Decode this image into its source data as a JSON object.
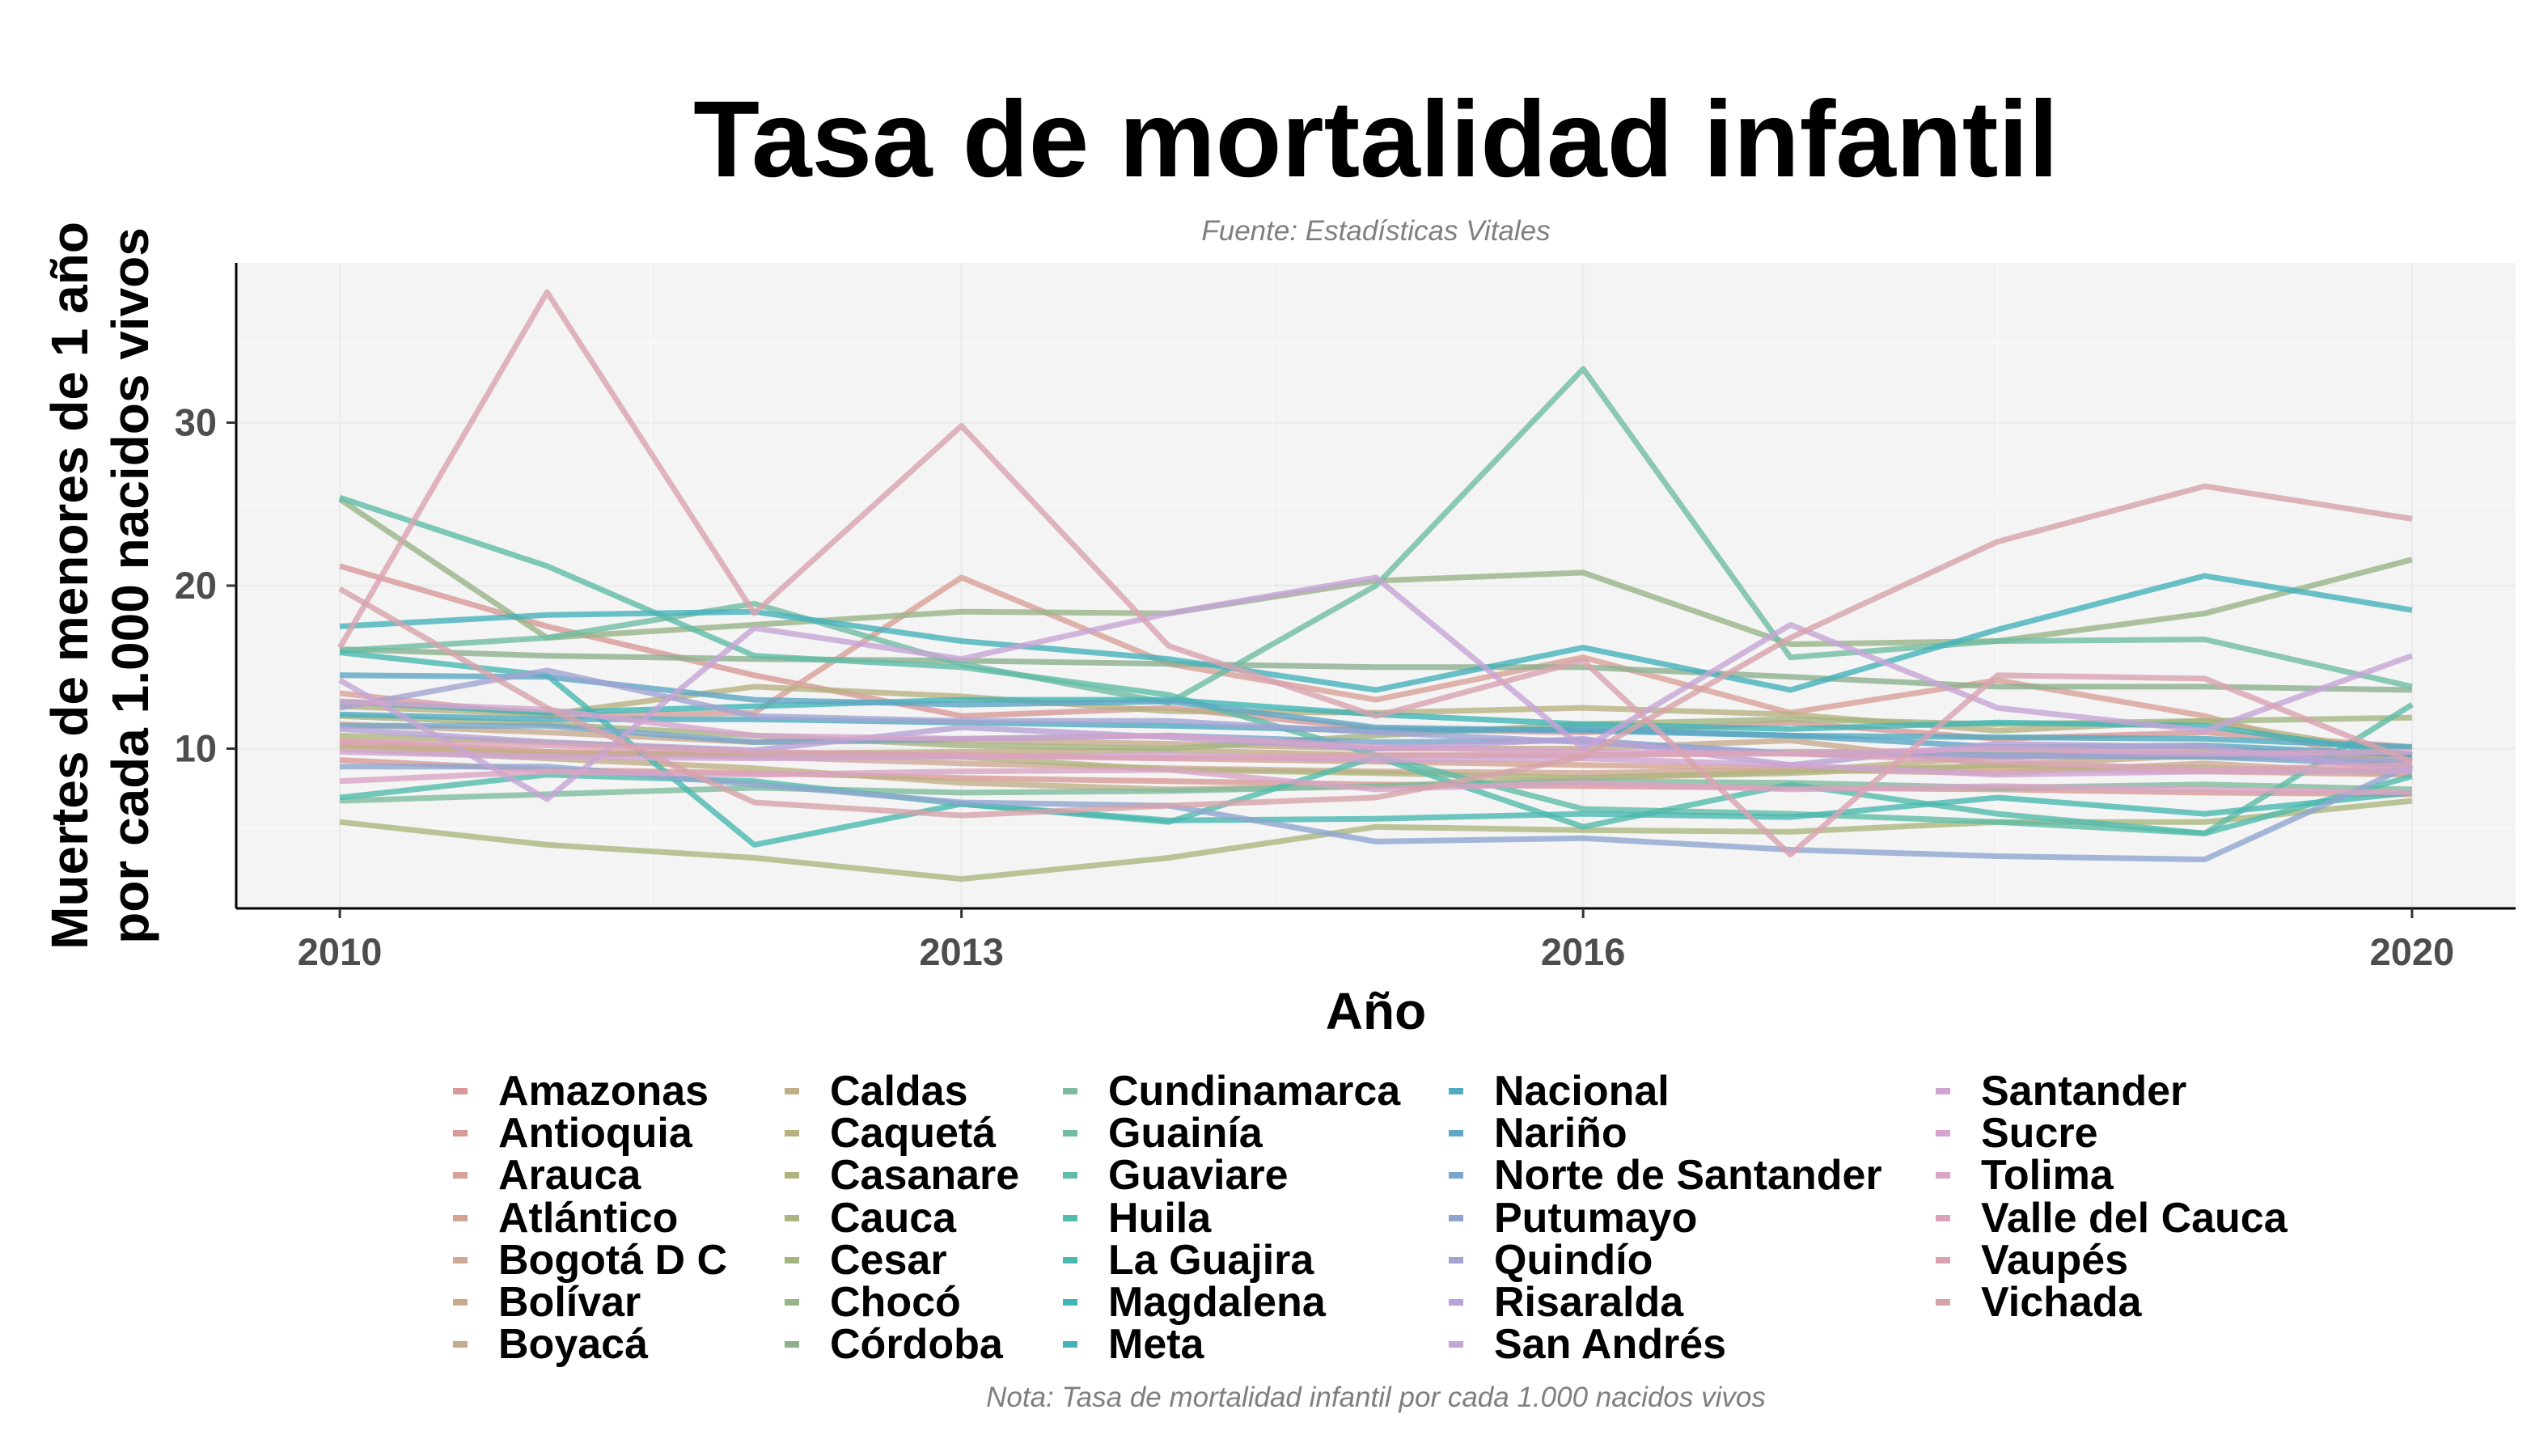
{
  "chart_data": {
    "type": "line",
    "title": "Tasa de mortalidad infantil",
    "subtitle": "Fuente: Estadísticas Vitales",
    "caption": "Nota: Tasa de mortalidad infantil por cada 1.000 nacidos vivos",
    "xlabel": "Año",
    "ylabel": [
      "Muertes de menores de 1 año",
      "por cada 1.000 nacidos vivos"
    ],
    "xlim": [
      2009.5,
      2020.5
    ],
    "ylim": [
      0.2,
      39.8
    ],
    "x_ticks": [
      2010,
      2013,
      2016,
      2020
    ],
    "y_ticks": [
      10,
      20,
      30
    ],
    "grid": true,
    "legend_position": "bottom",
    "x": [
      2010,
      2011,
      2012,
      2013,
      2014,
      2015,
      2016,
      2017,
      2018,
      2019,
      2020
    ],
    "series": [
      {
        "name": "Amazonas",
        "color": "#d89898",
        "values": [
          21.2,
          17.5,
          14.5,
          12.0,
          12.5,
          11.2,
          11.0,
          11.6,
          10.6,
          11.0,
          10.1
        ]
      },
      {
        "name": "Antioquia",
        "color": "#d89a96",
        "values": [
          9.3,
          8.7,
          8.5,
          8.2,
          8.0,
          7.8,
          7.7,
          7.6,
          7.5,
          7.3,
          7.2
        ]
      },
      {
        "name": "Arauca",
        "color": "#d8a098",
        "values": [
          13.4,
          12.0,
          12.2,
          20.5,
          15.2,
          13.0,
          15.6,
          12.2,
          14.2,
          12.0,
          8.6
        ]
      },
      {
        "name": "Atlántico",
        "color": "#d4a492",
        "values": [
          10.5,
          9.8,
          9.6,
          9.6,
          9.4,
          9.2,
          9.0,
          8.8,
          8.8,
          8.6,
          8.4
        ]
      },
      {
        "name": "Bogotá D C",
        "color": "#cfa996",
        "values": [
          10.2,
          9.8,
          9.5,
          9.1,
          8.8,
          8.6,
          8.5,
          8.7,
          8.5,
          9.1,
          8.4
        ]
      },
      {
        "name": "Bolívar",
        "color": "#c8ab8e",
        "values": [
          11.5,
          11.0,
          10.4,
          10.5,
          10.3,
          10.0,
          10.0,
          10.5,
          9.0,
          9.6,
          9.2
        ]
      },
      {
        "name": "Boyacá",
        "color": "#c2ad88",
        "values": [
          10.3,
          9.6,
          9.7,
          9.8,
          9.9,
          9.6,
          9.6,
          9.8,
          9.8,
          10.0,
          9.5
        ]
      },
      {
        "name": "Caldas",
        "color": "#c0b088",
        "values": [
          10.0,
          9.4,
          8.8,
          7.9,
          7.5,
          7.7,
          8.2,
          8.6,
          9.5,
          9.5,
          9.5
        ]
      },
      {
        "name": "Caquetá",
        "color": "#b8b282",
        "values": [
          12.6,
          12.1,
          13.8,
          13.2,
          12.3,
          12.2,
          12.5,
          12.1,
          11.1,
          11.7,
          9.6
        ]
      },
      {
        "name": "Casanare",
        "color": "#b1b480",
        "values": [
          10.8,
          10.4,
          9.8,
          9.5,
          8.7,
          8.5,
          8.2,
          8.5,
          9.0,
          8.8,
          8.6
        ]
      },
      {
        "name": "Cauca",
        "color": "#aab67e",
        "values": [
          5.5,
          4.1,
          3.3,
          2.0,
          3.3,
          5.2,
          5.0,
          4.9,
          5.5,
          5.5,
          6.8
        ]
      },
      {
        "name": "Cesar",
        "color": "#a2b580",
        "values": [
          12.0,
          11.5,
          10.8,
          10.2,
          10.0,
          10.8,
          11.5,
          11.8,
          11.5,
          11.7,
          11.9
        ]
      },
      {
        "name": "Chocó",
        "color": "#98b488",
        "values": [
          25.3,
          16.8,
          17.6,
          18.4,
          18.3,
          20.3,
          20.8,
          16.4,
          16.6,
          18.3,
          21.6
        ]
      },
      {
        "name": "Córdoba",
        "color": "#8cb08e",
        "values": [
          16.1,
          15.7,
          15.5,
          15.4,
          15.2,
          15.0,
          15.0,
          14.4,
          13.8,
          13.8,
          13.6
        ]
      },
      {
        "name": "Cundinamarca",
        "color": "#7ebc9e",
        "values": [
          6.8,
          7.2,
          7.6,
          7.3,
          7.4,
          7.7,
          8.0,
          7.9,
          7.6,
          7.8,
          7.5
        ]
      },
      {
        "name": "Guainía",
        "color": "#6fbda2",
        "values": [
          16.0,
          16.8,
          18.9,
          15.2,
          12.8,
          20.0,
          33.3,
          15.6,
          16.6,
          16.7,
          13.8
        ]
      },
      {
        "name": "Guaviare",
        "color": "#5fbca6",
        "values": [
          25.4,
          21.2,
          15.7,
          15.0,
          13.3,
          9.6,
          6.3,
          6.0,
          5.5,
          4.8,
          12.7
        ]
      },
      {
        "name": "Huila",
        "color": "#52bbab",
        "values": [
          7.0,
          8.4,
          8.0,
          6.6,
          5.5,
          9.5,
          5.2,
          7.8,
          6.0,
          4.8,
          8.3
        ]
      },
      {
        "name": "La Guajira",
        "color": "#48b8b0",
        "values": [
          15.9,
          14.5,
          4.1,
          6.6,
          5.6,
          5.7,
          6.0,
          5.8,
          7.0,
          6.0,
          7.3
        ]
      },
      {
        "name": "Magdalena",
        "color": "#40b5b5",
        "values": [
          12.9,
          12.2,
          12.6,
          13.0,
          13.0,
          12.1,
          11.5,
          11.2,
          11.6,
          11.4,
          9.6
        ]
      },
      {
        "name": "Meta",
        "color": "#45b2ba",
        "values": [
          17.5,
          18.2,
          18.4,
          16.6,
          15.5,
          13.6,
          16.2,
          13.6,
          17.3,
          20.6,
          18.5
        ]
      },
      {
        "name": "Nacional",
        "color": "#50abc0",
        "values": [
          12.1,
          11.8,
          11.8,
          11.6,
          11.4,
          11.1,
          11.2,
          10.8,
          10.7,
          10.6,
          10.1
        ]
      },
      {
        "name": "Nariño",
        "color": "#5ea6c4",
        "values": [
          14.5,
          14.4,
          13.0,
          12.7,
          12.9,
          11.3,
          11.1,
          10.8,
          10.1,
          10.2,
          9.6
        ]
      },
      {
        "name": "Norte de Santander",
        "color": "#78a6cc",
        "values": [
          11.4,
          11.4,
          10.4,
          10.6,
          10.8,
          10.4,
          10.5,
          9.7,
          9.6,
          9.5,
          9.0
        ]
      },
      {
        "name": "Putumayo",
        "color": "#8fa6d0",
        "values": [
          8.9,
          8.9,
          7.8,
          6.7,
          6.5,
          4.3,
          4.5,
          3.8,
          3.4,
          3.2,
          9.0
        ]
      },
      {
        "name": "Quindío",
        "color": "#a3a4d2",
        "values": [
          12.5,
          14.8,
          12.0,
          11.7,
          11.7,
          11.0,
          10.4,
          9.7,
          9.5,
          9.7,
          9.2
        ]
      },
      {
        "name": "Risaralda",
        "color": "#b6a2d4",
        "values": [
          11.2,
          10.4,
          9.9,
          11.3,
          10.7,
          10.0,
          10.6,
          9.0,
          10.3,
          10.1,
          8.6
        ]
      },
      {
        "name": "San Andrés",
        "color": "#c5a4d6",
        "values": [
          14.2,
          6.9,
          17.4,
          15.5,
          18.3,
          20.5,
          10.0,
          17.6,
          12.5,
          11.1,
          15.7
        ]
      },
      {
        "name": "Santander",
        "color": "#cfa4d2",
        "values": [
          9.8,
          9.5,
          9.4,
          9.5,
          9.6,
          9.3,
          9.4,
          9.0,
          8.4,
          8.6,
          8.6
        ]
      },
      {
        "name": "Sucre",
        "color": "#d6a4cc",
        "values": [
          12.9,
          12.4,
          10.8,
          10.6,
          10.8,
          10.1,
          9.8,
          9.7,
          10.0,
          9.7,
          9.8
        ]
      },
      {
        "name": "Tolima",
        "color": "#daa4c4",
        "values": [
          8.0,
          8.6,
          8.4,
          8.6,
          8.7,
          7.5,
          7.9,
          7.5,
          7.7,
          7.5,
          7.3
        ]
      },
      {
        "name": "Valle del Cauca",
        "color": "#dca4ba",
        "values": [
          10.4,
          10.2,
          9.8,
          9.6,
          9.4,
          9.6,
          9.6,
          9.7,
          9.2,
          8.7,
          9.0
        ]
      },
      {
        "name": "Vaupés",
        "color": "#d9a2b0",
        "values": [
          16.2,
          38.0,
          18.3,
          29.8,
          16.3,
          12.0,
          15.4,
          3.5,
          14.5,
          14.3,
          9.2
        ]
      },
      {
        "name": "Vichada",
        "color": "#d6a2aa",
        "values": [
          19.8,
          12.5,
          6.7,
          5.9,
          6.5,
          7.0,
          9.5,
          16.8,
          22.7,
          26.1,
          24.1
        ]
      }
    ]
  }
}
